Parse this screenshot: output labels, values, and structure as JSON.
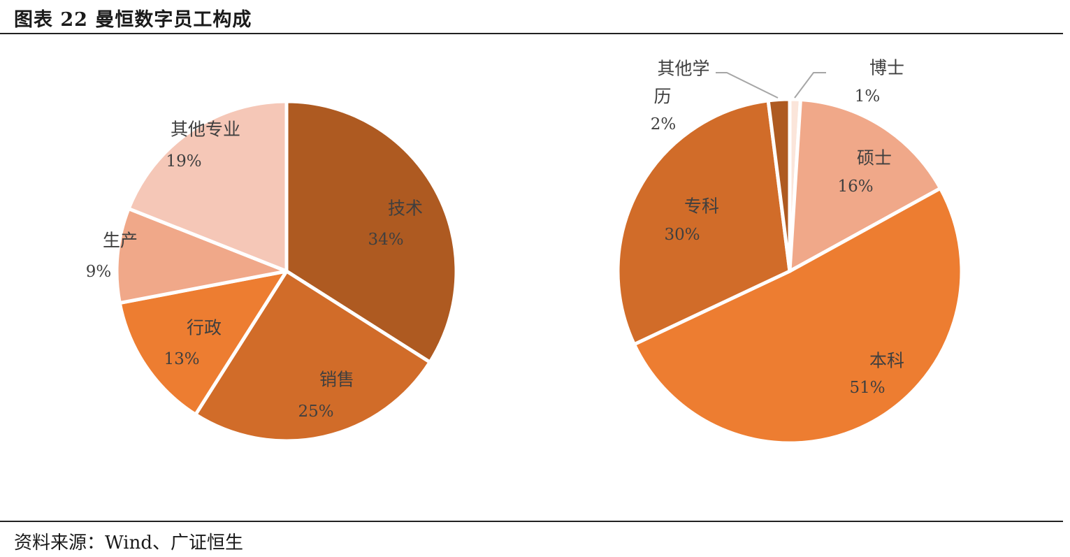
{
  "header": {
    "title": "图表 22 曼恒数字员工构成"
  },
  "footer": {
    "source": "资料来源：Wind、广证恒生"
  },
  "colors": {
    "dark_brown": "#AE5A21",
    "mid_orange": "#D16C29",
    "orange": "#ED7D31",
    "salmon": "#F0A889",
    "light_pink": "#F5C7B7",
    "pale": "#FBE5DA",
    "leader_line": "#a6a6a6",
    "separator": "#ffffff"
  },
  "chart_data": [
    {
      "type": "pie",
      "title": "",
      "slices": [
        {
          "label": "技术",
          "value": 34,
          "pct_label": "34%",
          "color": "#AE5A21"
        },
        {
          "label": "销售",
          "value": 25,
          "pct_label": "25%",
          "color": "#D16C29"
        },
        {
          "label": "行政",
          "value": 13,
          "pct_label": "13%",
          "color": "#ED7D31"
        },
        {
          "label": "生产",
          "value": 9,
          "pct_label": "9%",
          "color": "#F0A889"
        },
        {
          "label": "其他专业",
          "value": 19,
          "pct_label": "19%",
          "color": "#F5C7B7"
        }
      ]
    },
    {
      "type": "pie",
      "title": "",
      "slices": [
        {
          "label": "博士",
          "value": 1,
          "pct_label": "1%",
          "color": "#FBE5DA"
        },
        {
          "label": "硕士",
          "value": 16,
          "pct_label": "16%",
          "color": "#F0A889"
        },
        {
          "label": "本科",
          "value": 51,
          "pct_label": "51%",
          "color": "#ED7D31"
        },
        {
          "label": "专科",
          "value": 30,
          "pct_label": "30%",
          "color": "#D16C29"
        },
        {
          "label": "其他学历",
          "label_lines": [
            "其他学",
            "历"
          ],
          "value": 2,
          "pct_label": "2%",
          "color": "#AE5A21"
        }
      ]
    }
  ]
}
